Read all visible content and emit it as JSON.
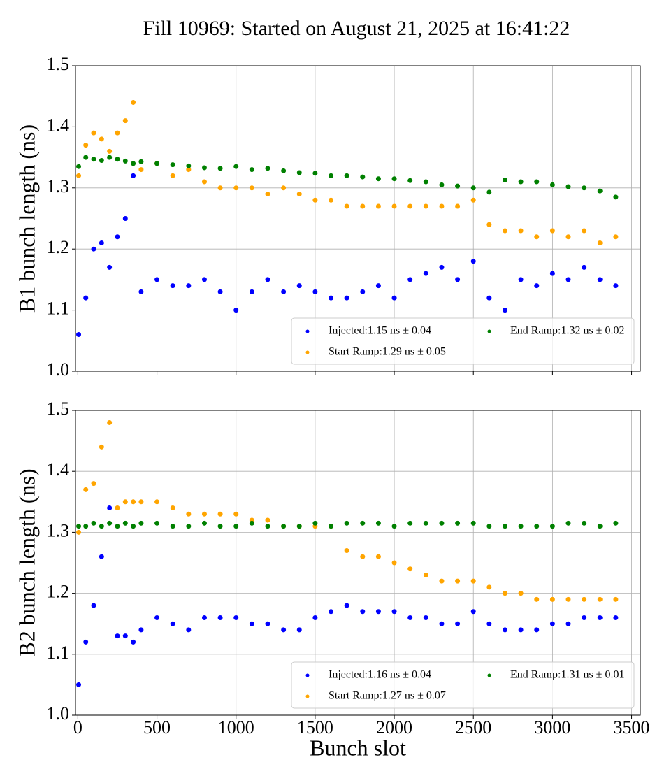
{
  "chart_data": [
    {
      "type": "scatter",
      "title": "Fill 10969: Started on August 21, 2025 at 16:41:22",
      "ylabel": "B1 bunch length (ns)",
      "x": [
        5,
        50,
        100,
        150,
        200,
        250,
        300,
        350,
        400,
        500,
        600,
        700,
        800,
        900,
        1000,
        1100,
        1200,
        1300,
        1400,
        1500,
        1600,
        1700,
        1800,
        1900,
        2000,
        2100,
        2200,
        2300,
        2400,
        2500,
        2600,
        2700,
        2800,
        2900,
        3000,
        3100,
        3200,
        3300,
        3400
      ],
      "series": [
        {
          "name": "Injected:1.15 ns ± 0.04",
          "color": "#0000ff",
          "values": [
            1.06,
            1.12,
            1.2,
            1.21,
            1.17,
            1.22,
            1.25,
            1.32,
            1.13,
            1.15,
            1.14,
            1.14,
            1.15,
            1.13,
            1.1,
            1.13,
            1.15,
            1.13,
            1.14,
            1.13,
            1.12,
            1.12,
            1.13,
            1.14,
            1.12,
            1.15,
            1.16,
            1.17,
            1.15,
            1.18,
            1.12,
            1.1,
            1.15,
            1.14,
            1.16,
            1.15,
            1.17,
            1.15,
            1.14
          ]
        },
        {
          "name": "Start Ramp:1.29 ns ± 0.05",
          "color": "#ffa500",
          "values": [
            1.32,
            1.37,
            1.39,
            1.38,
            1.36,
            1.39,
            1.41,
            1.44,
            1.33,
            1.34,
            1.32,
            1.33,
            1.31,
            1.3,
            1.3,
            1.3,
            1.29,
            1.3,
            1.29,
            1.28,
            1.28,
            1.27,
            1.27,
            1.27,
            1.27,
            1.27,
            1.27,
            1.27,
            1.27,
            1.28,
            1.24,
            1.23,
            1.23,
            1.22,
            1.23,
            1.22,
            1.23,
            1.21,
            1.22
          ]
        },
        {
          "name": "End Ramp:1.32 ns ± 0.02",
          "color": "#008000",
          "values": [
            1.335,
            1.35,
            1.347,
            1.345,
            1.35,
            1.347,
            1.344,
            1.34,
            1.343,
            1.34,
            1.338,
            1.336,
            1.333,
            1.332,
            1.335,
            1.33,
            1.332,
            1.328,
            1.325,
            1.324,
            1.32,
            1.32,
            1.318,
            1.315,
            1.315,
            1.312,
            1.31,
            1.305,
            1.303,
            1.3,
            1.293,
            1.313,
            1.31,
            1.31,
            1.305,
            1.302,
            1.3,
            1.295,
            1.285
          ]
        }
      ],
      "xlim": [
        -15,
        3555
      ],
      "xticks": [
        0,
        500,
        1000,
        1500,
        2000,
        2500,
        3000,
        3500
      ],
      "ylim": [
        1.0,
        1.5
      ],
      "yticks": [
        {
          "value": 1,
          "label": "1.0"
        },
        1.1,
        1.2,
        1.3,
        1.4,
        1.5
      ],
      "grid": true,
      "legend": "lower right"
    },
    {
      "type": "scatter",
      "ylabel": "B2 bunch length (ns)",
      "xlabel": "Bunch slot",
      "x": [
        5,
        50,
        100,
        150,
        200,
        250,
        300,
        350,
        400,
        500,
        600,
        700,
        800,
        900,
        1000,
        1100,
        1200,
        1300,
        1400,
        1500,
        1600,
        1700,
        1800,
        1900,
        2000,
        2100,
        2200,
        2300,
        2400,
        2500,
        2600,
        2700,
        2800,
        2900,
        3000,
        3100,
        3200,
        3300,
        3400
      ],
      "series": [
        {
          "name": "Injected:1.16 ns ± 0.04",
          "color": "#0000ff",
          "values": [
            1.05,
            1.12,
            1.18,
            1.26,
            1.34,
            1.13,
            1.13,
            1.12,
            1.14,
            1.16,
            1.15,
            1.14,
            1.16,
            1.16,
            1.16,
            1.15,
            1.15,
            1.14,
            1.14,
            1.16,
            1.17,
            1.18,
            1.17,
            1.17,
            1.17,
            1.16,
            1.16,
            1.15,
            1.15,
            1.17,
            1.15,
            1.14,
            1.14,
            1.14,
            1.15,
            1.15,
            1.16,
            1.16,
            1.16
          ]
        },
        {
          "name": "Start Ramp:1.27 ns ± 0.07",
          "color": "#ffa500",
          "values": [
            1.3,
            1.37,
            1.38,
            1.44,
            1.48,
            1.34,
            1.35,
            1.35,
            1.35,
            1.35,
            1.34,
            1.33,
            1.33,
            1.33,
            1.33,
            1.32,
            1.32,
            1.31,
            1.31,
            1.31,
            1.31,
            1.27,
            1.26,
            1.26,
            1.25,
            1.24,
            1.23,
            1.22,
            1.22,
            1.22,
            1.21,
            1.2,
            1.2,
            1.19,
            1.19,
            1.19,
            1.19,
            1.19,
            1.19
          ]
        },
        {
          "name": "End Ramp:1.31 ns ± 0.01",
          "color": "#008000",
          "values": [
            1.31,
            1.31,
            1.315,
            1.31,
            1.315,
            1.31,
            1.315,
            1.31,
            1.315,
            1.315,
            1.31,
            1.31,
            1.315,
            1.31,
            1.31,
            1.315,
            1.31,
            1.31,
            1.31,
            1.315,
            1.31,
            1.315,
            1.315,
            1.315,
            1.31,
            1.315,
            1.315,
            1.315,
            1.315,
            1.315,
            1.31,
            1.31,
            1.31,
            1.31,
            1.31,
            1.315,
            1.315,
            1.31,
            1.315
          ]
        }
      ],
      "xlim": [
        -15,
        3555
      ],
      "xticks": [
        0,
        500,
        1000,
        1500,
        2000,
        2500,
        3000,
        3500
      ],
      "ylim": [
        1.0,
        1.5
      ],
      "yticks": [
        {
          "value": 1,
          "label": "1.0"
        },
        1.1,
        1.2,
        1.3,
        1.4,
        1.5
      ],
      "grid": true,
      "legend": "lower right"
    }
  ]
}
